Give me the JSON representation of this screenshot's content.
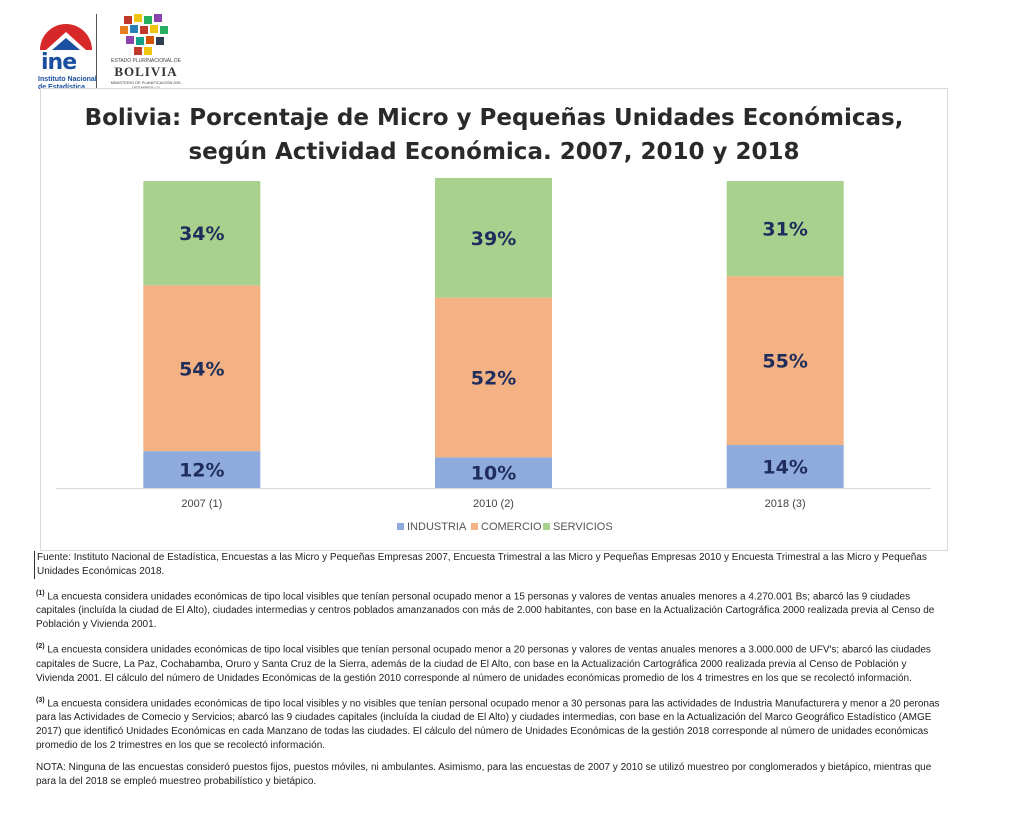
{
  "header": {
    "ine_logo_text": "ine",
    "ine_subtitle": "Instituto Nacional de Estadística",
    "bolivia_pre": "ESTADO PLURINACIONAL DE",
    "bolivia_word": "BOLIVIA",
    "bolivia_sub": "MINISTERIO DE PLANIFICACIÓN DEL DESARROLLO"
  },
  "chart_data": {
    "type": "bar",
    "stacked": true,
    "title_line1": "Bolivia: Porcentaje de Micro y Pequeñas Unidades Económicas,",
    "title_line2": "según Actividad Económica. 2007, 2010 y 2018",
    "categories": [
      "2007 (1)",
      "2010 (2)",
      "2018 (3)"
    ],
    "series": [
      {
        "name": "INDUSTRIA",
        "values": [
          12,
          10,
          14
        ],
        "labels": [
          "12%",
          "10%",
          "14%"
        ],
        "color": "#8faadc"
      },
      {
        "name": "COMERCIO",
        "values": [
          54,
          52,
          55
        ],
        "labels": [
          "54%",
          "52%",
          "55%"
        ],
        "color": "#f4b183"
      },
      {
        "name": "SERVICIOS",
        "values": [
          34,
          39,
          31
        ],
        "labels": [
          "34%",
          "39%",
          "31%"
        ],
        "color": "#a9d18e"
      }
    ],
    "ylim": [
      0,
      100
    ],
    "grid": false,
    "legend": "bottom",
    "label_color": "#1f2d5c"
  },
  "notes": {
    "fuente": "Fuente: Instituto Nacional de Estadística, Encuestas a las Micro y Pequeñas Empresas 2007, Encuesta Trimestral a las Micro y Pequeñas Empresas 2010 y Encuesta Trimestral a las Micro y Pequeñas Unidades Económicas 2018.",
    "n1_mark": "(1)",
    "n1": "La encuesta considera unidades económicas de tipo local visibles que tenían personal ocupado menor a 15 personas y valores de ventas anuales menores a 4.270.001 Bs; abarcó las 9 ciudades capitales (incluída la ciudad de El Alto), ciudades intermedias y centros poblados amanzanados con más de 2.000 habitantes, con base en la Actualización Cartográfica 2000 realizada previa al Censo de Población y Vivienda 2001.",
    "n2_mark": "(2)",
    "n2": "La encuesta considera unidades económicas de tipo local visibles que tenían personal ocupado menor a 20 personas y valores de ventas anuales menores a 3.000.000 de UFV's; abarcó las ciudades capitales de Sucre, La Paz, Cochabamba, Oruro y Santa Cruz de la Sierra, además de la ciudad de El Alto, con base en la Actualización Cartográfica 2000 realizada previa al Censo de Población y Vivienda 2001. El cálculo del número de Unidades Económicas de la gestión 2010 corresponde al número de unidades económicas promedio de los 4 trimestres en los que se recolectó información.",
    "n3_mark": "(3)",
    "n3": "La encuesta considera unidades económicas de tipo local visibles y no visibles que tenían personal ocupado menor a 30 personas para las actividades de Industria Manufacturera y menor a 20 peronas para las Actividades de Comecio y Servicios; abarcó las 9 ciudades capitales (incluída la ciudad de El Alto) y ciudades intermedias, con base en la Actualización del Marco Geográfico Estadístico (AMGE 2017) que identificó Unidades Económicas en cada Manzano de todas las ciudades. El cálculo del número de Unidades Económicas de la gestión 2018 corresponde al número de unidades económicas promedio de los 2 trimestres en los que se recolectó información.",
    "nota": "NOTA: Ninguna de las encuestas consideró puestos fijos, puestos móviles, ni ambulantes. Asimismo,  para las encuestas de 2007 y 2010 se utilizó muestreo por conglomerados y bietápico, mientras que para la del 2018 se empleó muestreo probabilístico y bietápico."
  }
}
